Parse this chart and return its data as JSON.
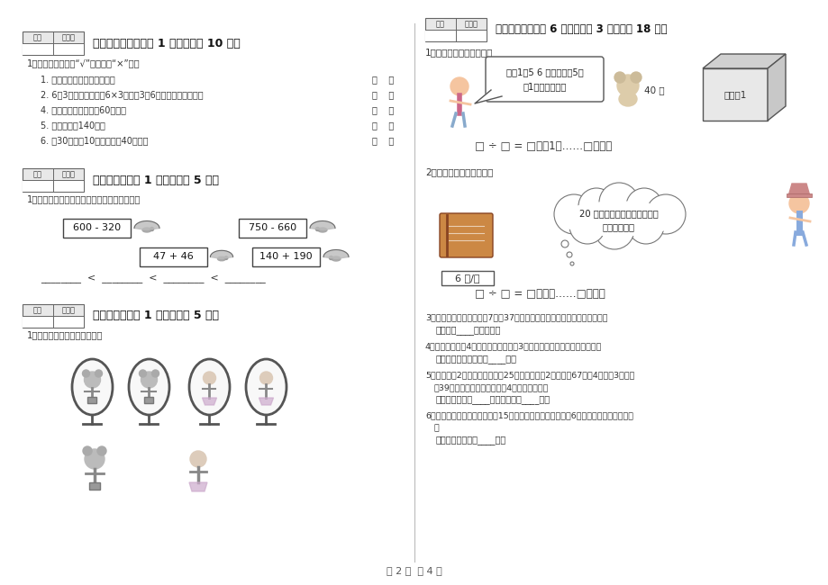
{
  "page_bg": "#ffffff",
  "score_box_label1": "得分",
  "score_box_label2": "评卷人",
  "left_panel": {
    "section5_header": "五、判断对与错（共 1 大题，共计 10 分）",
    "section5_intro": "1、判断。（对的打“√”，错的打“×”）。",
    "section5_items": [
      "1. 角的边长越长，角就越大。",
      "2. 6和3相乘，可以写作6×3，读作3乘6，口诀是三六十八。",
      "4. 学校操场环形跑道长60厘米。",
      "5. 小军的身高140米。",
      "6. 比30厘米少10厘米的线段40厘米。"
    ],
    "section6_header": "六、比一比（共 1 大题，共计 5 分）",
    "section6_sub": "1、把下列算式按得数大小，从小到大排一行。",
    "math_exprs": [
      "600 - 320",
      "750 - 660",
      "47 + 46",
      "140 + 190"
    ],
    "blanks_line": "________  <  ________  <  ________  <  ________",
    "section7_header": "七、连一连（共 1 大题，共计 5 分）",
    "section7_sub": "1、连一连镜子里看到的图像。"
  },
  "right_panel": {
    "section8_header": "八、解决问题（共 6 小题，每题 3 分，共计 18 分）",
    "prob1_label": "1、我是解决问题小能手。",
    "prob1_bubble_line1": "每符1衘5 6 只，可以衘5几",
    "prob1_bubble_line2": "符1，还剩几只？",
    "prob1_qty": "40 只",
    "prob1_box_label": "包装符1",
    "prob1_equation": "□ ÷ □ = □（符1）……□（只）",
    "prob2_label": "2、我是解决问题小能手。",
    "prob2_bubble_line1": "20 元錢，可以买几本笔记本，",
    "prob2_bubble_line2": "还剩多少錢？",
    "prob2_price": "6 元/本",
    "prob2_equation": "□ ÷ □ = □（本）……□（元）",
    "prob3_text": "3、校园里有排松树。每捷7棵，37棵松树已经浇了水，还有多少棵没浇水？",
    "prob3_answer": "答：还有____棵没浇水。",
    "prob4_text": "4、动物园有熊猫4只，有猴子是熊猫的3倍。同一共有熊猫和猴子多少只？",
    "prob4_answer": "答：一共有熊猫和猴子____只。",
    "prob5_text": "5、实验小学2年级订《数学报》25份，三年级比2年级多订67份，4年级比3年级少订39份，三年级订了多少份？4年级订多少份？",
    "prob5_answer": "答：三年级订了____份，四年级订____份。",
    "prob6_text": "6、小红看故事书，第一天看了15页，第二天看的比第一天少6页，两天一共看了多少页？",
    "prob6_answer": "答：两天一共看了____页。"
  },
  "footer": "第 2 页  共 4 页"
}
